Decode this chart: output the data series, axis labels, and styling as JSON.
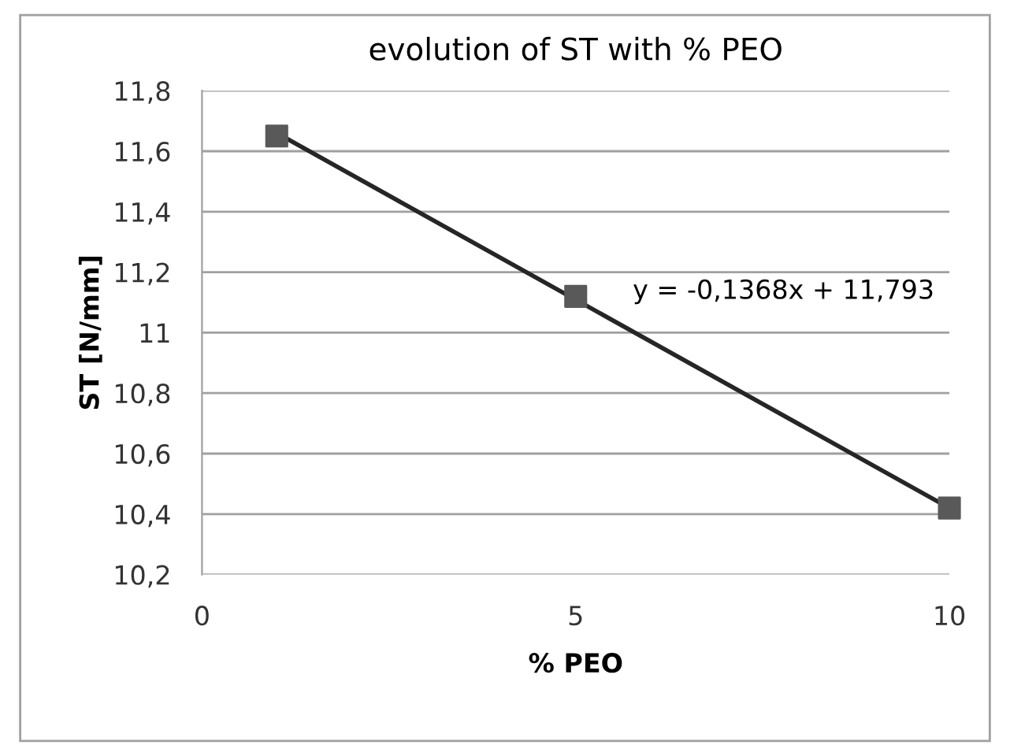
{
  "chart_data": {
    "type": "scatter",
    "title": "evolution of ST with % PEO",
    "xlabel": "% PEO",
    "ylabel": "ST [N/mm]",
    "series": [
      {
        "color": "#595959",
        "marker": "square",
        "x": [
          1,
          5,
          10
        ],
        "values": [
          11.65,
          11.12,
          10.42
        ]
      },
      {
        "type": "line",
        "color": "#262626",
        "marker": "none",
        "line_style": "solid",
        "x": [
          1,
          10
        ],
        "values": [
          11.66,
          10.42
        ]
      }
    ],
    "xlim": [
      0,
      10
    ],
    "xticks": [
      0,
      5,
      10
    ],
    "ylim": [
      10.2,
      11.8
    ],
    "yticks": [
      {
        "value": 10.2,
        "label": "10,2"
      },
      {
        "value": 10.4,
        "label": "10,4"
      },
      {
        "value": 10.6,
        "label": "10,6"
      },
      {
        "value": 10.8,
        "label": "10,8"
      },
      {
        "value": 11,
        "label": "11"
      },
      {
        "value": 11.2,
        "label": "11,2"
      },
      {
        "value": 11.4,
        "label": "11,4"
      },
      {
        "value": 11.6,
        "label": "11,6"
      },
      {
        "value": 11.8,
        "label": "11,8"
      }
    ],
    "grid": "y",
    "legend": false,
    "annotations": [
      "y = -0,1368x + 11,793"
    ]
  }
}
